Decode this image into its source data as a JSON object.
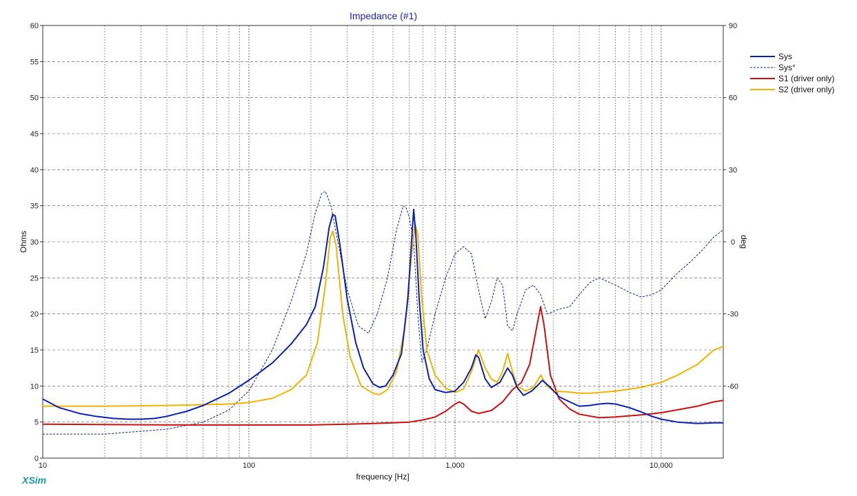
{
  "app_brand": "XSim",
  "chart_data": {
    "type": "line",
    "title": "Impedance (#1)",
    "xlabel": "frequency [Hz]",
    "ylabel": "Ohms",
    "y2label": "deg",
    "xscale": "log",
    "xlim": [
      10,
      20000
    ],
    "ylim": [
      0,
      60
    ],
    "y2lim": [
      -90,
      90
    ],
    "grid": true,
    "legend_placement": "right",
    "x_ticks": [
      {
        "value": 10,
        "label": "10"
      },
      {
        "value": 100,
        "label": "100"
      },
      {
        "value": 1000,
        "label": "1,000"
      },
      {
        "value": 10000,
        "label": "10,000"
      }
    ],
    "y_ticks": [
      0,
      5,
      10,
      15,
      20,
      25,
      30,
      35,
      40,
      45,
      50,
      55,
      60
    ],
    "y2_ticks": [
      -60,
      -30,
      0,
      30,
      60,
      90
    ],
    "series": [
      {
        "name": "Sys",
        "color": "#0a1fb5",
        "style": "solid",
        "axis": "left",
        "points": [
          [
            10,
            8.2
          ],
          [
            12,
            7.0
          ],
          [
            15,
            6.2
          ],
          [
            18,
            5.8
          ],
          [
            22,
            5.5
          ],
          [
            26,
            5.4
          ],
          [
            30,
            5.4
          ],
          [
            35,
            5.5
          ],
          [
            40,
            5.8
          ],
          [
            50,
            6.5
          ],
          [
            60,
            7.3
          ],
          [
            80,
            9.0
          ],
          [
            100,
            10.8
          ],
          [
            130,
            13.2
          ],
          [
            160,
            15.8
          ],
          [
            190,
            18.5
          ],
          [
            210,
            21.0
          ],
          [
            230,
            26.5
          ],
          [
            245,
            32.0
          ],
          [
            255,
            33.8
          ],
          [
            262,
            33.6
          ],
          [
            275,
            30.0
          ],
          [
            300,
            22.0
          ],
          [
            330,
            16.0
          ],
          [
            360,
            12.5
          ],
          [
            400,
            10.3
          ],
          [
            430,
            9.8
          ],
          [
            460,
            10.0
          ],
          [
            500,
            11.5
          ],
          [
            550,
            14.5
          ],
          [
            590,
            22.0
          ],
          [
            615,
            30.0
          ],
          [
            630,
            34.5
          ],
          [
            645,
            31.0
          ],
          [
            670,
            22.0
          ],
          [
            700,
            15.0
          ],
          [
            750,
            11.0
          ],
          [
            800,
            9.5
          ],
          [
            900,
            9.1
          ],
          [
            1000,
            9.3
          ],
          [
            1100,
            10.5
          ],
          [
            1200,
            12.5
          ],
          [
            1260,
            14.3
          ],
          [
            1300,
            14.0
          ],
          [
            1400,
            11.0
          ],
          [
            1500,
            9.8
          ],
          [
            1650,
            10.5
          ],
          [
            1800,
            12.5
          ],
          [
            1900,
            11.5
          ],
          [
            2000,
            9.8
          ],
          [
            2150,
            8.7
          ],
          [
            2350,
            9.3
          ],
          [
            2500,
            10.0
          ],
          [
            2650,
            10.8
          ],
          [
            2900,
            9.8
          ],
          [
            3200,
            8.5
          ],
          [
            3600,
            7.8
          ],
          [
            4000,
            7.2
          ],
          [
            4500,
            7.3
          ],
          [
            5000,
            7.5
          ],
          [
            5500,
            7.6
          ],
          [
            6000,
            7.5
          ],
          [
            7000,
            7.0
          ],
          [
            8000,
            6.4
          ],
          [
            9000,
            5.8
          ],
          [
            10000,
            5.4
          ],
          [
            12000,
            5.0
          ],
          [
            15000,
            4.8
          ],
          [
            18000,
            4.9
          ],
          [
            20000,
            4.9
          ]
        ]
      },
      {
        "name": "Sys°",
        "color": "#0a1fb5",
        "style": "dashed",
        "axis": "right",
        "points": [
          [
            10,
            -80
          ],
          [
            20,
            -80
          ],
          [
            40,
            -78
          ],
          [
            60,
            -75
          ],
          [
            80,
            -70
          ],
          [
            100,
            -62
          ],
          [
            130,
            -45
          ],
          [
            160,
            -25
          ],
          [
            190,
            -5
          ],
          [
            210,
            12
          ],
          [
            225,
            20
          ],
          [
            235,
            21
          ],
          [
            250,
            15
          ],
          [
            270,
            0
          ],
          [
            300,
            -20
          ],
          [
            340,
            -35
          ],
          [
            380,
            -38
          ],
          [
            420,
            -30
          ],
          [
            470,
            -15
          ],
          [
            520,
            5
          ],
          [
            560,
            15
          ],
          [
            580,
            14
          ],
          [
            600,
            10
          ],
          [
            630,
            0
          ],
          [
            660,
            -30
          ],
          [
            690,
            -50
          ],
          [
            730,
            -45
          ],
          [
            800,
            -30
          ],
          [
            900,
            -15
          ],
          [
            1000,
            -5
          ],
          [
            1100,
            -2
          ],
          [
            1200,
            -5
          ],
          [
            1300,
            -20
          ],
          [
            1400,
            -32
          ],
          [
            1500,
            -25
          ],
          [
            1600,
            -15
          ],
          [
            1700,
            -18
          ],
          [
            1800,
            -35
          ],
          [
            1900,
            -37
          ],
          [
            2000,
            -30
          ],
          [
            2200,
            -20
          ],
          [
            2400,
            -18
          ],
          [
            2600,
            -22
          ],
          [
            2800,
            -30
          ],
          [
            3200,
            -28
          ],
          [
            3600,
            -27
          ],
          [
            4000,
            -22
          ],
          [
            4500,
            -17
          ],
          [
            5000,
            -15
          ],
          [
            6000,
            -18
          ],
          [
            7000,
            -21
          ],
          [
            8000,
            -23
          ],
          [
            9000,
            -22
          ],
          [
            10000,
            -20
          ],
          [
            12000,
            -13
          ],
          [
            14000,
            -8
          ],
          [
            16000,
            -3
          ],
          [
            18000,
            2
          ],
          [
            20000,
            5
          ]
        ]
      },
      {
        "name": "S1 (driver only)",
        "color": "#cc0f0f",
        "style": "solid",
        "axis": "left",
        "points": [
          [
            10,
            4.7
          ],
          [
            50,
            4.6
          ],
          [
            100,
            4.6
          ],
          [
            200,
            4.6
          ],
          [
            300,
            4.7
          ],
          [
            400,
            4.8
          ],
          [
            500,
            4.9
          ],
          [
            600,
            5.0
          ],
          [
            700,
            5.3
          ],
          [
            800,
            5.7
          ],
          [
            900,
            6.5
          ],
          [
            1000,
            7.5
          ],
          [
            1050,
            7.8
          ],
          [
            1100,
            7.5
          ],
          [
            1200,
            6.5
          ],
          [
            1300,
            6.2
          ],
          [
            1500,
            6.6
          ],
          [
            1700,
            7.8
          ],
          [
            1900,
            9.5
          ],
          [
            2100,
            10.5
          ],
          [
            2300,
            13.0
          ],
          [
            2500,
            18.5
          ],
          [
            2600,
            21.0
          ],
          [
            2700,
            18.5
          ],
          [
            2900,
            11.5
          ],
          [
            3200,
            8.2
          ],
          [
            3600,
            6.8
          ],
          [
            4000,
            6.1
          ],
          [
            5000,
            5.6
          ],
          [
            6000,
            5.7
          ],
          [
            8000,
            6.0
          ],
          [
            10000,
            6.3
          ],
          [
            12000,
            6.7
          ],
          [
            15000,
            7.2
          ],
          [
            18000,
            7.8
          ],
          [
            20000,
            8.0
          ]
        ]
      },
      {
        "name": "S2 (driver only)",
        "color": "#f0b400",
        "style": "solid",
        "axis": "left",
        "points": [
          [
            10,
            7.2
          ],
          [
            20,
            7.2
          ],
          [
            40,
            7.3
          ],
          [
            60,
            7.4
          ],
          [
            80,
            7.5
          ],
          [
            100,
            7.7
          ],
          [
            130,
            8.3
          ],
          [
            160,
            9.5
          ],
          [
            190,
            11.5
          ],
          [
            215,
            16.0
          ],
          [
            235,
            24.0
          ],
          [
            248,
            30.5
          ],
          [
            255,
            31.5
          ],
          [
            265,
            29.5
          ],
          [
            285,
            20.0
          ],
          [
            310,
            14.0
          ],
          [
            350,
            10.0
          ],
          [
            400,
            9.0
          ],
          [
            430,
            8.8
          ],
          [
            470,
            9.5
          ],
          [
            520,
            12.0
          ],
          [
            570,
            18.0
          ],
          [
            610,
            27.0
          ],
          [
            640,
            32.5
          ],
          [
            660,
            31.0
          ],
          [
            690,
            22.0
          ],
          [
            730,
            15.0
          ],
          [
            800,
            11.5
          ],
          [
            900,
            9.7
          ],
          [
            1000,
            9.1
          ],
          [
            1100,
            9.6
          ],
          [
            1200,
            12.0
          ],
          [
            1300,
            15.0
          ],
          [
            1400,
            12.5
          ],
          [
            1500,
            11.0
          ],
          [
            1600,
            10.5
          ],
          [
            1700,
            12.0
          ],
          [
            1800,
            14.5
          ],
          [
            1900,
            12.0
          ],
          [
            2000,
            10.0
          ],
          [
            2200,
            9.3
          ],
          [
            2400,
            9.8
          ],
          [
            2600,
            11.5
          ],
          [
            2800,
            10.0
          ],
          [
            3000,
            9.3
          ],
          [
            3500,
            9.2
          ],
          [
            4000,
            9.0
          ],
          [
            4500,
            9.0
          ],
          [
            5000,
            9.1
          ],
          [
            6000,
            9.3
          ],
          [
            8000,
            9.8
          ],
          [
            10000,
            10.5
          ],
          [
            12000,
            11.5
          ],
          [
            15000,
            13.0
          ],
          [
            18000,
            15.0
          ],
          [
            20000,
            15.5
          ]
        ]
      }
    ]
  }
}
